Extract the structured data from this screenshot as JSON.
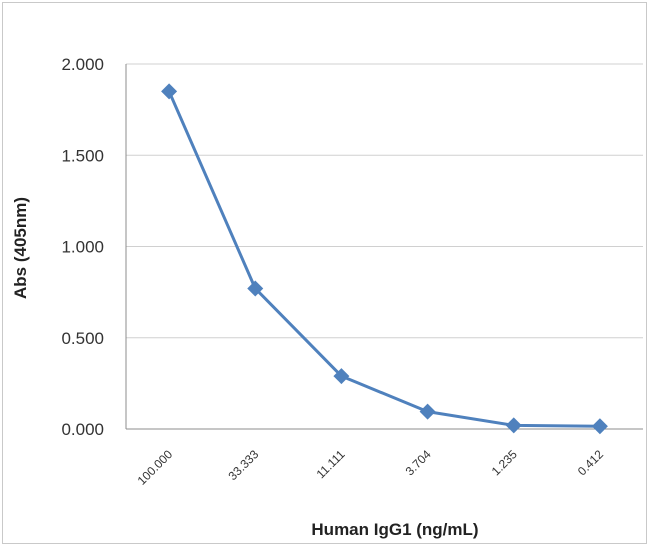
{
  "chart_data": {
    "type": "line",
    "title": "",
    "xlabel": "Human IgG1 (ng/mL)",
    "ylabel": "Abs (405nm)",
    "categories": [
      "100.000",
      "33.333",
      "11.111",
      "3.704",
      "1.235",
      "0.412"
    ],
    "series": [
      {
        "values": [
          1.85,
          0.77,
          0.29,
          0.095,
          0.02,
          0.015
        ]
      }
    ],
    "ylim": [
      0,
      2.0
    ],
    "yticks": [
      0,
      0.5,
      1.0,
      1.5,
      2.0
    ],
    "ytick_labels": [
      "0.000",
      "0.500",
      "1.000",
      "1.500",
      "2.000"
    ],
    "grid": true,
    "legend": "none",
    "marker": "diamond",
    "colors": {
      "series": "#4f81bd",
      "grid": "#d0d0d0",
      "axis": "#8c8c8c"
    }
  }
}
